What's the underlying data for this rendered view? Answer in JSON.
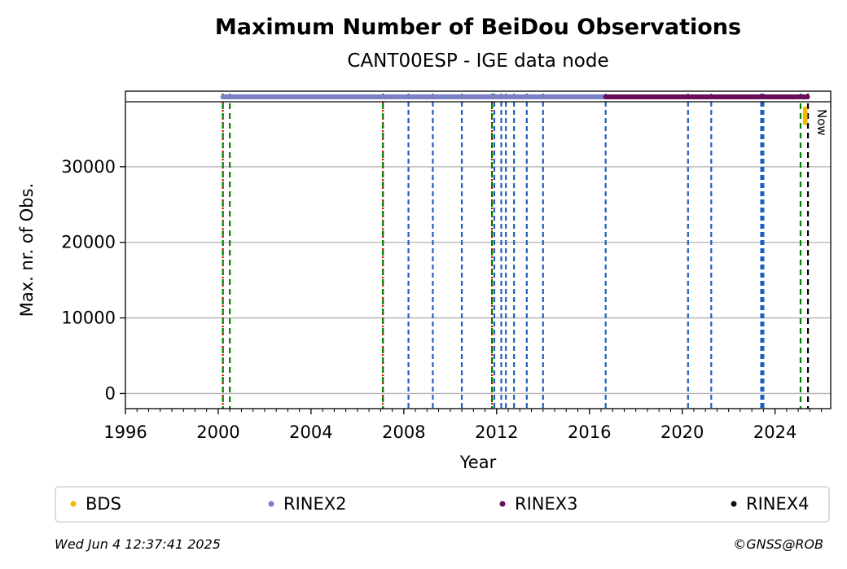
{
  "chart_data": {
    "type": "scatter",
    "title": "Maximum Number of BeiDou Observations",
    "subtitle": "CANT00ESP - IGE data node",
    "xlabel": "Year",
    "ylabel": "Max. nr. of Obs.",
    "xlim": [
      1996,
      2026.4
    ],
    "ylim": [
      -2000,
      40000
    ],
    "x_ticks": [
      1996,
      2000,
      2004,
      2008,
      2012,
      2016,
      2020,
      2024
    ],
    "y_ticks": [
      0,
      10000,
      20000,
      30000
    ],
    "grid": "horizontal",
    "legend_position": "bottom",
    "now_label": "Now",
    "now_x": 2025.42,
    "series": [
      {
        "name": "BDS",
        "color": "#f5b700",
        "x_start": 2025.2,
        "x_end": 2025.4,
        "y_min": 35500,
        "y_max": 38000
      },
      {
        "name": "RINEX2",
        "color": "#7b7fc4",
        "x_start": 2000.2,
        "x_end": 2016.7,
        "y": 39700
      },
      {
        "name": "RINEX3",
        "color": "#6b0d5b",
        "x_start": 2016.7,
        "x_end": 2025.4,
        "y": 39700
      },
      {
        "name": "RINEX4",
        "color": "#1c0615",
        "x_start": null,
        "x_end": null,
        "y": null
      }
    ],
    "event_lines": {
      "red_dotted": [
        2000.2,
        2007.1,
        2011.8
      ],
      "green_dashed": [
        2000.2,
        2000.5,
        2007.1,
        2011.8,
        2025.1
      ],
      "blue_dashed": [
        2008.2,
        2009.25,
        2010.5,
        2011.9,
        2012.2,
        2012.4,
        2012.75,
        2013.3,
        2014.0,
        2016.7,
        2020.25,
        2021.25,
        2023.4,
        2023.45,
        2023.5
      ],
      "black_dashed": [
        2025.42
      ]
    },
    "colors": {
      "red": "#dd0000",
      "green": "#008000",
      "blue": "#1f5fbf",
      "grid": "#b0b0b0"
    }
  },
  "footer": {
    "timestamp": "Wed Jun  4 12:37:41 2025",
    "credit": "©GNSS@ROB"
  }
}
